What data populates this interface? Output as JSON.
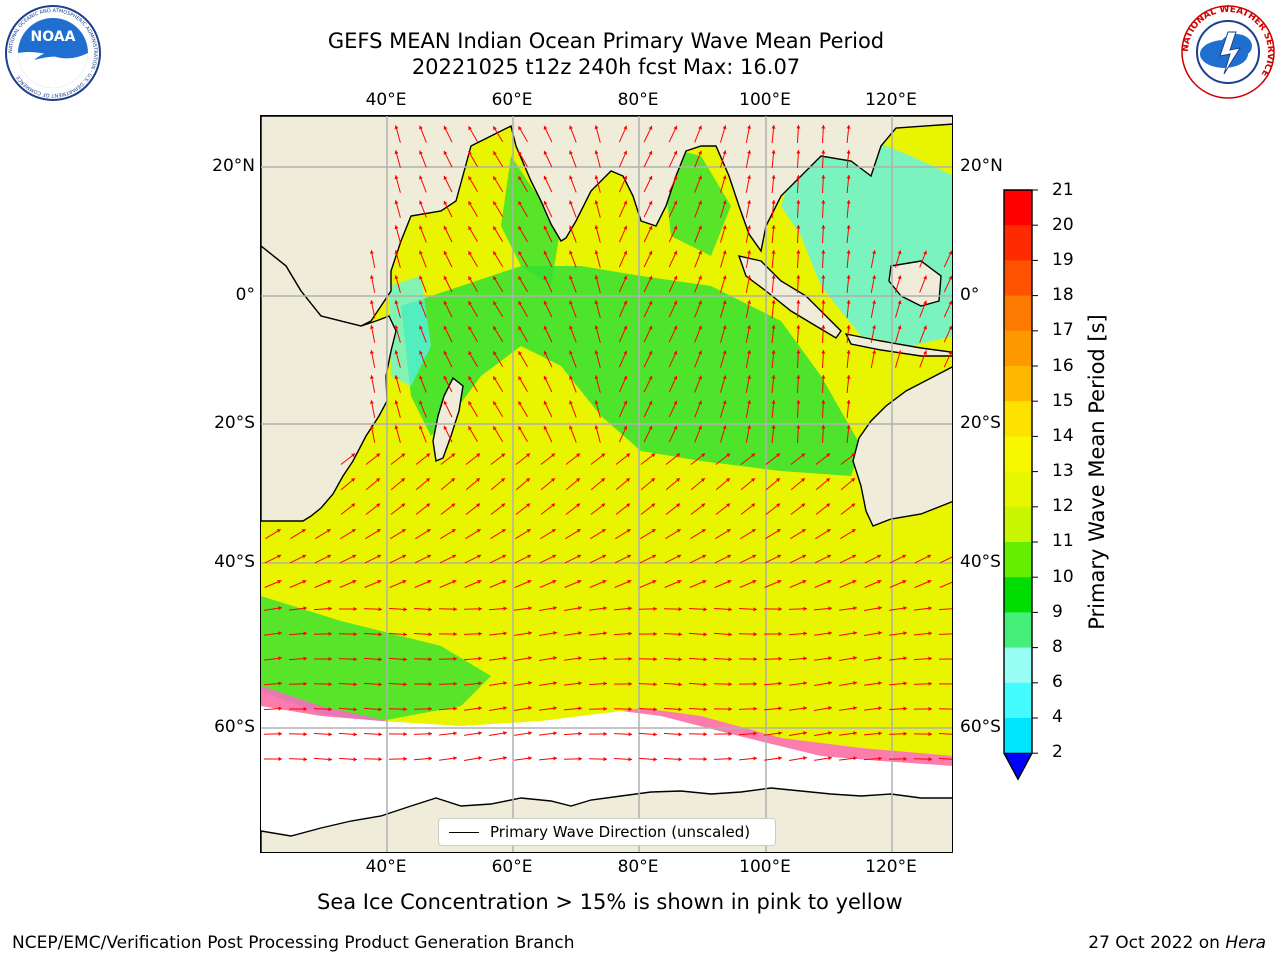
{
  "title": {
    "line1": "GEFS MEAN Indian Ocean Primary Wave Mean Period",
    "line2": "20221025 t12z 240h fcst   Max: 16.07"
  },
  "logos": {
    "left": {
      "icon": "noaa-logo",
      "text": "NOAA",
      "ring_text": "NATIONAL OCEANIC AND ATMOSPHERIC ADMINISTRATION · U.S. DEPARTMENT OF COMMERCE"
    },
    "right": {
      "icon": "nws-logo",
      "ring_text": "NATIONAL WEATHER SERVICE"
    }
  },
  "axes": {
    "lon_ticks": [
      "40°E",
      "60°E",
      "80°E",
      "100°E",
      "120°E"
    ],
    "lat_ticks": [
      "20°N",
      "0°",
      "20°S",
      "40°S",
      "60°S"
    ]
  },
  "colorbar": {
    "title": "Primary Wave Mean Period [s]",
    "labels": [
      "21",
      "20",
      "19",
      "18",
      "17",
      "16",
      "15",
      "14",
      "13",
      "12",
      "11",
      "10",
      "9",
      "8",
      "6",
      "4",
      "2"
    ],
    "colors": [
      "#ff0000",
      "#ff2a00",
      "#ff5200",
      "#ff7a00",
      "#ff9900",
      "#ffb800",
      "#ffe100",
      "#f7f700",
      "#e6f700",
      "#c8f500",
      "#66ee00",
      "#00dd00",
      "#44f07a",
      "#99fff6",
      "#44fbff",
      "#00e6ff",
      "#0078ff"
    ],
    "under_color": "#0000ff"
  },
  "legend": {
    "label": "Primary Wave Direction (unscaled)"
  },
  "note": "Sea Ice Concentration > 15% is shown in pink to yellow",
  "footer": {
    "left": "NCEP/EMC/Verification Post Processing Product Generation Branch",
    "right_date": "27 Oct 2022 on",
    "right_host": "Hera"
  },
  "colors": {
    "land": "#efedda",
    "ocean_main": "#e9f500",
    "ocean_green": "#33e033",
    "ocean_cyan": "#55f2ff",
    "arrow": "#ff0000",
    "sea_ice": "#ff66cc"
  }
}
